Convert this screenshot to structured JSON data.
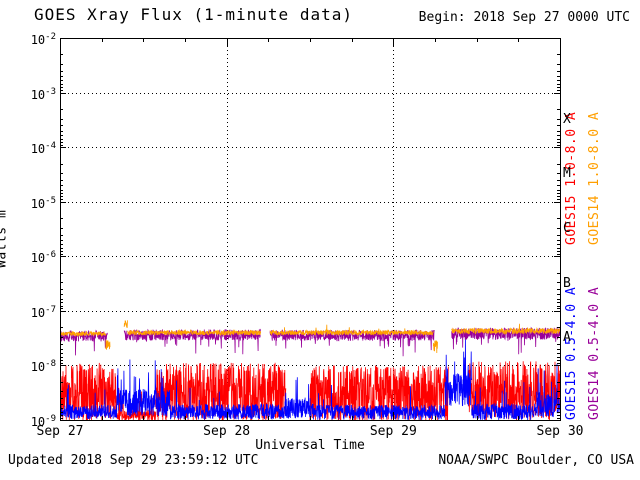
{
  "chart_data": {
    "type": "line",
    "title": "GOES Xray Flux (1-minute data)",
    "begin_label": "Begin: 2018 Sep 27 0000 UTC",
    "x_axis": {
      "label": "Universal Time",
      "ticks": [
        "Sep 27",
        "Sep 28",
        "Sep 29",
        "Sep 30"
      ],
      "tick_days": [
        0,
        1,
        2,
        3
      ],
      "range_days": [
        0,
        3
      ]
    },
    "y_axis": {
      "label_base": "Watts m",
      "label_exp": "-2",
      "scale": "log",
      "tick_exponents": [
        -2,
        -3,
        -4,
        -5,
        -6,
        -7,
        -8,
        -9
      ],
      "log_range": [
        -9,
        -2
      ]
    },
    "grid": {
      "h_exponents": [
        -3,
        -4,
        -5,
        -6,
        -7,
        -8
      ],
      "v_days": [
        1,
        2
      ]
    },
    "flare_classes": [
      {
        "label": "X",
        "log_center": -3.5
      },
      {
        "label": "M",
        "log_center": -4.5
      },
      {
        "label": "C",
        "log_center": -5.5
      },
      {
        "label": "B",
        "log_center": -6.5
      },
      {
        "label": "A",
        "log_center": -7.5
      }
    ],
    "series": [
      {
        "name": "GOES15 1.0-8.0 A",
        "color": "#ff0000",
        "segments": [
          {
            "t0": 0.0,
            "t1": 0.335,
            "log_mean": -8.5,
            "log_noise": 0.55
          },
          {
            "t0": 0.335,
            "t1": 0.575,
            "log_mean": -8.92,
            "log_noise": 0.1,
            "spike_prob": 0.05,
            "spike_amp": 0.5
          },
          {
            "t0": 0.575,
            "t1": 1.355,
            "log_mean": -8.5,
            "log_noise": 0.55
          },
          {
            "t0": 1.5,
            "t1": 2.33,
            "log_mean": -8.52,
            "log_noise": 0.52
          },
          {
            "t0": 2.45,
            "t1": 3.0,
            "log_mean": -8.47,
            "log_noise": 0.55
          }
        ]
      },
      {
        "name": "GOES15 0.5-4.0 A",
        "color": "#0000ff",
        "segments": [
          {
            "t0": 0.0,
            "t1": 0.34,
            "log_mean": -8.85,
            "log_noise": 0.13,
            "spike_prob": 0.02,
            "spike_amp": 0.5
          },
          {
            "t0": 0.34,
            "t1": 0.66,
            "log_mean": -8.68,
            "log_noise": 0.26,
            "spike_prob": 0.07,
            "spike_amp": 0.85
          },
          {
            "t0": 0.66,
            "t1": 1.35,
            "log_mean": -8.85,
            "log_noise": 0.14,
            "spike_prob": 0.015,
            "spike_amp": 0.5
          },
          {
            "t0": 1.35,
            "t1": 1.52,
            "log_mean": -8.78,
            "log_noise": 0.2,
            "spike_prob": 0.05,
            "spike_amp": 0.7
          },
          {
            "t0": 1.52,
            "t1": 2.31,
            "log_mean": -8.86,
            "log_noise": 0.14,
            "spike_prob": 0.012,
            "spike_amp": 0.5
          },
          {
            "t0": 2.31,
            "t1": 2.47,
            "log_mean": -8.45,
            "log_noise": 0.32,
            "spike_prob": 0.1,
            "spike_amp": 0.8
          },
          {
            "t0": 2.47,
            "t1": 2.86,
            "log_mean": -8.85,
            "log_noise": 0.15,
            "spike_prob": 0.02,
            "spike_amp": 0.55
          },
          {
            "t0": 2.86,
            "t1": 3.0,
            "log_mean": -8.72,
            "log_noise": 0.24,
            "spike_prob": 0.08,
            "spike_amp": 0.8
          }
        ]
      },
      {
        "name": "GOES14 0.5-4.0 A",
        "color": "#990099",
        "segments": [
          {
            "t0": 0.0,
            "t1": 0.285,
            "log_mean": -7.46,
            "log_noise": 0.1,
            "spike_prob": 0.02,
            "spike_amp": -0.35
          },
          {
            "t0": 0.385,
            "t1": 1.205,
            "log_mean": -7.44,
            "log_noise": 0.1,
            "spike_prob": 0.02,
            "spike_amp": -0.3
          },
          {
            "t0": 1.26,
            "t1": 2.245,
            "log_mean": -7.45,
            "log_noise": 0.1,
            "spike_prob": 0.02,
            "spike_amp": -0.3
          },
          {
            "t0": 2.35,
            "t1": 3.0,
            "log_mean": -7.42,
            "log_noise": 0.11,
            "spike_prob": 0.03,
            "spike_amp": -0.3
          }
        ]
      },
      {
        "name": "GOES14 1.0-8.0 A",
        "color": "#ff9f00",
        "segments": [
          {
            "t0": 0.0,
            "t1": 0.275,
            "log_mean": -7.42,
            "log_noise": 0.04
          },
          {
            "t0": 0.275,
            "t1": 0.3,
            "log_mean": -7.62,
            "log_noise": 0.1
          },
          {
            "t0": 0.385,
            "t1": 0.405,
            "log_mean": -7.25,
            "log_noise": 0.08
          },
          {
            "t0": 0.405,
            "t1": 1.205,
            "log_mean": -7.4,
            "log_noise": 0.045
          },
          {
            "t0": 1.26,
            "t1": 2.24,
            "log_mean": -7.4,
            "log_noise": 0.045,
            "spike_prob": 0.01,
            "spike_amp": 0.12
          },
          {
            "t0": 2.24,
            "t1": 2.265,
            "log_mean": -7.66,
            "log_noise": 0.12
          },
          {
            "t0": 2.35,
            "t1": 3.0,
            "log_mean": -7.37,
            "log_noise": 0.05,
            "spike_prob": 0.01,
            "spike_amp": 0.12
          }
        ]
      }
    ]
  },
  "footer": {
    "updated": "Updated 2018 Sep 29 23:59:12 UTC",
    "credit": "NOAA/SWPC Boulder, CO USA"
  }
}
